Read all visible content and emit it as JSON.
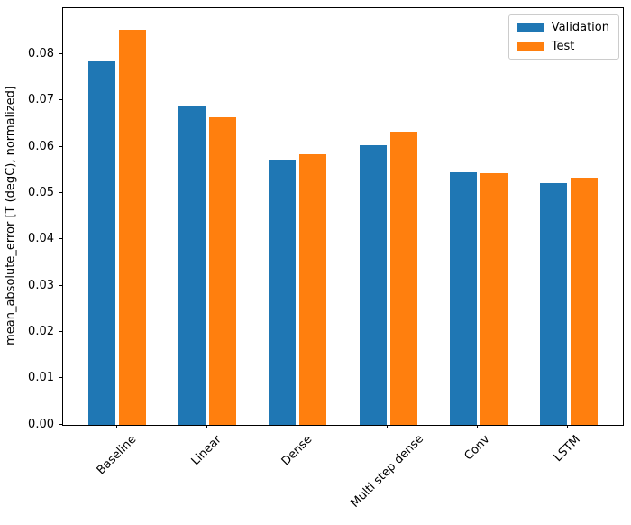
{
  "chart_data": {
    "type": "bar",
    "title": "",
    "xlabel": "",
    "ylabel": "mean_absolute_error [T (degC), normalized]",
    "categories": [
      "Baseline",
      "Linear",
      "Dense",
      "Multi step dense",
      "Conv",
      "LSTM"
    ],
    "series": [
      {
        "name": "Validation",
        "color": "#1f77b4",
        "values": [
          0.0786,
          0.0688,
          0.0573,
          0.0604,
          0.0546,
          0.0522
        ]
      },
      {
        "name": "Test",
        "color": "#ff7f0e",
        "values": [
          0.0854,
          0.0664,
          0.0584,
          0.0634,
          0.0543,
          0.0533
        ]
      }
    ],
    "ylim": [
      0,
      0.09
    ],
    "ytick_labels": [
      "0.00",
      "0.01",
      "0.02",
      "0.03",
      "0.04",
      "0.05",
      "0.06",
      "0.07",
      "0.08"
    ],
    "xlim": [
      -0.602,
      5.602
    ],
    "bar_width": 0.3,
    "series_offsets": [
      -0.17,
      0.17
    ],
    "xtick_rotation": 45,
    "grid": false,
    "legend_location": "upper right",
    "axis_color": "#000000",
    "legend_border_color": "#cccccc",
    "background_color": "#ffffff"
  }
}
